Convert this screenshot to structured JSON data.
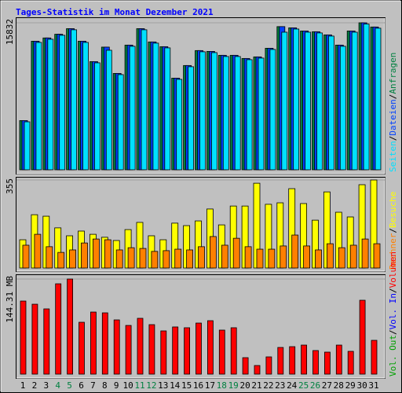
{
  "title": "Tages-Statistik im Monat Dezember 2021",
  "separator": "/",
  "chart_data": [
    {
      "type": "bar",
      "ylim": [
        0,
        15832
      ],
      "yticks": [
        15832
      ],
      "series": [
        {
          "name": "Anfragen",
          "color": "#008040",
          "values": [
            5300,
            13850,
            14200,
            14600,
            15200,
            13850,
            11650,
            13213,
            10380,
            13430,
            15200,
            13770,
            13260,
            9870,
            11230,
            12840,
            12750,
            12330,
            12330,
            11990,
            12160,
            13090,
            15420,
            15290,
            14950,
            14870,
            14530,
            13430,
            14950,
            15832,
            15380
          ]
        },
        {
          "name": "Dateien",
          "color": "#0040ff",
          "values": [
            5300,
            13850,
            14200,
            14600,
            15200,
            13850,
            11650,
            13213,
            10380,
            13430,
            15200,
            13770,
            13260,
            9870,
            11230,
            12840,
            12750,
            12330,
            12330,
            11990,
            12160,
            13090,
            15420,
            15290,
            14950,
            14870,
            14530,
            13430,
            14950,
            15832,
            15380
          ]
        },
        {
          "name": "Seiten",
          "color": "#00e0ff",
          "values": [
            5167,
            13720,
            14060,
            14485,
            15080,
            13720,
            11520,
            12874,
            10250,
            13300,
            15080,
            13640,
            13130,
            9740,
            11100,
            12710,
            12620,
            12200,
            12200,
            11860,
            12030,
            12960,
            14820,
            15160,
            14820,
            14740,
            14400,
            13300,
            14820,
            15700,
            15250
          ]
        }
      ]
    },
    {
      "type": "bar",
      "ylim": [
        0,
        355
      ],
      "yticks": [
        355
      ],
      "series": [
        {
          "name": "Besuche",
          "color": "#ffff00",
          "values": [
            114,
            215,
            209,
            162,
            130,
            149,
            136,
            124,
            111,
            155,
            184,
            130,
            114,
            181,
            171,
            190,
            238,
            174,
            250,
            250,
            342,
            257,
            263,
            320,
            260,
            193,
            307,
            225,
            206,
            336,
            355
          ]
        },
        {
          "name": "Rechner",
          "color": "#ff8000",
          "values": [
            92,
            136,
            86,
            63,
            73,
            101,
            117,
            114,
            73,
            82,
            79,
            67,
            70,
            76,
            73,
            86,
            127,
            92,
            120,
            86,
            76,
            76,
            89,
            133,
            89,
            73,
            98,
            82,
            92,
            117,
            98
          ]
        }
      ]
    },
    {
      "type": "bar",
      "ylim": [
        0,
        144.31
      ],
      "yticks": [
        {
          "value": 144.31,
          "label": "144.31 MB"
        }
      ],
      "series": [
        {
          "name": "Volumen",
          "color": "#ff0000",
          "values": [
            110.9,
            106.1,
            99.0,
            137.1,
            144.31,
            78.7,
            94.2,
            93.0,
            82.3,
            73.9,
            84.7,
            75.1,
            65.6,
            71.6,
            70.4,
            77.5,
            81.1,
            66.8,
            70.4,
            25.0,
            13.1,
            26.2,
            40.5,
            41.7,
            44.1,
            35.8,
            33.4,
            44.1,
            34.6,
            112.1,
            51.3
          ]
        }
      ],
      "legend_extra": [
        {
          "name": "Vol. In",
          "color": "#0000ff"
        },
        {
          "name": "Vol. Out",
          "color": "#00a000"
        }
      ],
      "categories": [
        "1",
        "2",
        "3",
        "4",
        "5",
        "6",
        "7",
        "8",
        "9",
        "10",
        "11",
        "12",
        "13",
        "14",
        "15",
        "16",
        "17",
        "18",
        "19",
        "20",
        "21",
        "22",
        "23",
        "24",
        "25",
        "26",
        "27",
        "28",
        "29",
        "30",
        "31"
      ],
      "category_colors": [
        "#000000",
        "#000000",
        "#000000",
        "#008040",
        "#008040",
        "#000000",
        "#000000",
        "#000000",
        "#000000",
        "#000000",
        "#008040",
        "#008040",
        "#000000",
        "#000000",
        "#000000",
        "#000000",
        "#000000",
        "#008040",
        "#008040",
        "#000000",
        "#000000",
        "#000000",
        "#000000",
        "#000000",
        "#008040",
        "#008040",
        "#000000",
        "#000000",
        "#000000",
        "#000000",
        "#000000"
      ]
    }
  ]
}
